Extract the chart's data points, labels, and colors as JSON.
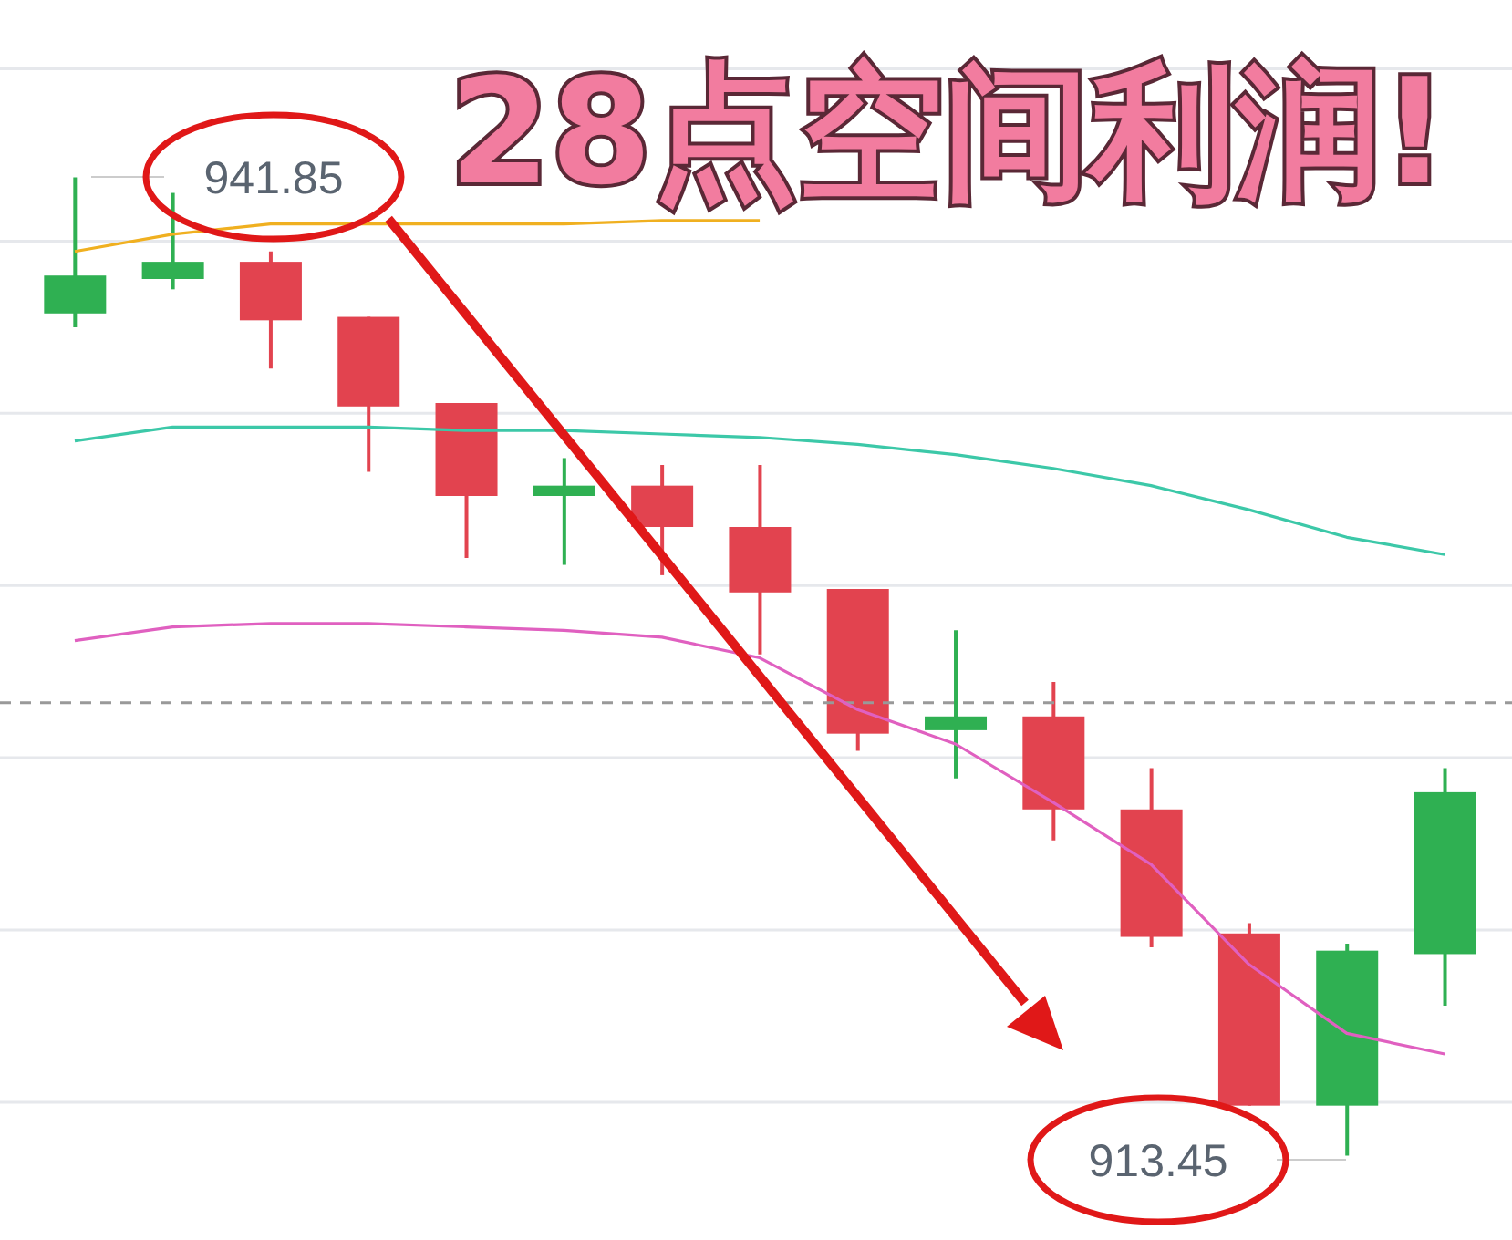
{
  "chart_data": {
    "type": "candlestick",
    "title": "28点空间利润!",
    "categories": [
      null,
      null,
      null,
      null,
      null,
      null,
      null,
      null,
      null,
      null,
      null,
      null,
      null,
      null,
      null
    ],
    "ohlc": [
      [
        937.9,
        941.85,
        937.5,
        939.0
      ],
      [
        938.9,
        941.4,
        938.6,
        939.4
      ],
      [
        939.4,
        939.7,
        936.3,
        937.7
      ],
      [
        937.8,
        937.8,
        933.3,
        935.2
      ],
      [
        935.3,
        935.3,
        930.8,
        932.6
      ],
      [
        932.6,
        933.7,
        930.6,
        932.9
      ],
      [
        932.9,
        933.5,
        930.3,
        931.7
      ],
      [
        931.7,
        933.5,
        928.0,
        929.8
      ],
      [
        929.9,
        929.9,
        925.2,
        925.7
      ],
      [
        925.8,
        928.7,
        924.4,
        926.2
      ],
      [
        926.2,
        927.2,
        922.6,
        923.5
      ],
      [
        923.5,
        924.7,
        919.5,
        919.8
      ],
      [
        919.9,
        920.2,
        914.9,
        914.9
      ],
      [
        914.9,
        919.6,
        913.45,
        919.4
      ],
      [
        919.3,
        924.7,
        917.8,
        924.0
      ]
    ],
    "colors": [
      "#2fb052",
      "#2fb052",
      "#e2434f",
      "#e2434f",
      "#e2434f",
      "#2fb052",
      "#e2434f",
      "#e2434f",
      "#e2434f",
      "#2fb052",
      "#e2434f",
      "#e2434f",
      "#e2434f",
      "#2fb052",
      "#2fb052"
    ],
    "series": [
      {
        "type": "line",
        "color": "#f0b020",
        "values": [
          939.7,
          940.2,
          940.5,
          940.5,
          940.5,
          940.5,
          940.6,
          940.6,
          null,
          null,
          null,
          null,
          null,
          null,
          null
        ]
      },
      {
        "type": "line",
        "color": "#3cc8a8",
        "values": [
          934.2,
          934.6,
          934.6,
          934.6,
          934.5,
          934.5,
          934.4,
          934.3,
          934.1,
          933.8,
          933.4,
          932.9,
          932.2,
          931.4,
          930.9
        ]
      },
      {
        "type": "line",
        "color": "#e060c0",
        "values": [
          928.4,
          928.8,
          928.9,
          928.9,
          928.8,
          928.7,
          928.5,
          927.9,
          926.4,
          925.4,
          923.7,
          921.9,
          919.0,
          917.0,
          916.4
        ]
      }
    ],
    "ylim": [
      911,
      947
    ],
    "yticks": [
      {
        "value": 915,
        "label": null
      },
      {
        "value": 920,
        "label": null
      },
      {
        "value": 925,
        "label": null
      },
      {
        "value": 930,
        "label": null
      },
      {
        "value": 935,
        "label": null
      },
      {
        "value": 940,
        "label": null
      },
      {
        "value": 945,
        "label": null
      }
    ],
    "grid": "y",
    "ref_lines": [
      {
        "axis": "y",
        "value": 926.6,
        "color": "#999999",
        "line_style": "dashed"
      }
    ],
    "annotations": [
      "941.85",
      "913.45"
    ]
  }
}
